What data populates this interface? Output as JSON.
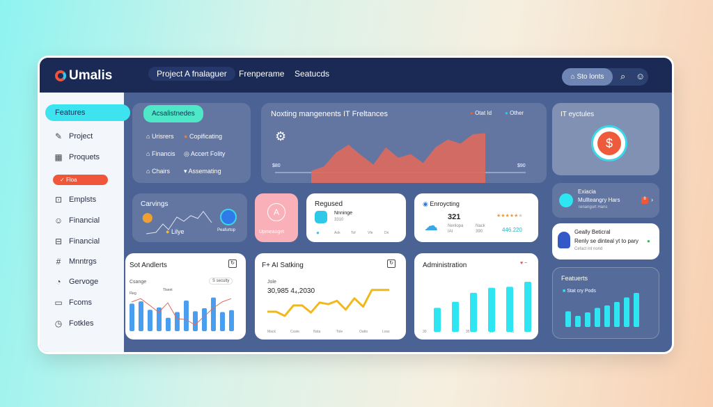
{
  "header": {
    "logo": "Umalis",
    "nav": [
      "Project A fnalaguer",
      "Frenperame",
      "Seatucds"
    ],
    "pill_label": "Sto lonts",
    "icons": [
      "search-icon",
      "user-icon"
    ]
  },
  "sidebar": {
    "active": "Features",
    "flag": "Floa",
    "items": [
      {
        "label": "Project",
        "icon": "pencil-icon",
        "glyph": "✎"
      },
      {
        "label": "Proquets",
        "icon": "calendar-icon",
        "glyph": "▦"
      },
      {
        "label": "Emplsts",
        "icon": "document-icon",
        "glyph": "⊡"
      },
      {
        "label": "Financial",
        "icon": "face-icon",
        "glyph": "☺"
      },
      {
        "label": "Financial",
        "icon": "money-icon",
        "glyph": "⊟"
      },
      {
        "label": "Mnntrgs",
        "icon": "grid-icon",
        "glyph": "#"
      },
      {
        "label": "Gervoge",
        "icon": "clock-icon",
        "glyph": "◔"
      },
      {
        "label": "Fcoms",
        "icon": "inbox-icon",
        "glyph": "▭"
      },
      {
        "label": "Fotkles",
        "icon": "compass-icon",
        "glyph": "◷"
      }
    ]
  },
  "assist": {
    "badge": "Acsalistnedes",
    "items": [
      [
        "Urisrers",
        "Copificating"
      ],
      [
        "Financis",
        "Accert Folity"
      ],
      [
        "Chairs",
        "Assemating"
      ]
    ]
  },
  "area": {
    "title": "Noxting mangenents IT Freltances",
    "legend": [
      "Otat Id",
      "Other"
    ],
    "ylabel_left": "$80",
    "ylabel_right": "$90",
    "values": [
      10,
      18,
      45,
      60,
      40,
      22,
      55,
      35,
      42,
      25,
      55,
      70,
      62,
      80,
      82
    ],
    "color": "#e06a5e"
  },
  "it": {
    "title": "IT eyctules",
    "symbol": "$"
  },
  "carvings": {
    "title": "Carvings",
    "label": "Lilye",
    "right_label": "Peafurtop"
  },
  "pink": {
    "label": "Upmeaoget",
    "symbol": "A"
  },
  "regused": {
    "title": "Regused",
    "name": "Nnninge",
    "sub": "3310",
    "axis": [
      "Aok",
      "Tof",
      "Vfe",
      "Dri"
    ]
  },
  "enroy": {
    "title": "Enroycting",
    "value": "321",
    "sub1": "Nenlopa",
    "sub1b": "IAI",
    "sub2": "Nack",
    "sub2b": "390",
    "amount": "446.220",
    "stars": "★★★★★",
    "star_off": "★"
  },
  "exacia": {
    "title": "Exiacia",
    "name": "Mullteangry Hars",
    "sub": "Tenangurt Hans",
    "badge": "8"
  },
  "geally": {
    "title": "Geally Beticral",
    "line": "Renly se dinteal yt to pary",
    "sub": "Cefact int nond"
  },
  "featuerts": {
    "title": "Featuerts",
    "legend": "Stat cry Pods",
    "values": [
      45,
      32,
      42,
      55,
      62,
      72,
      85,
      98
    ],
    "color": "#2ee6f2"
  },
  "sot": {
    "title": "Sot Andlerts",
    "label": "Csange",
    "chip": "S seculty",
    "ann1": "Fleg",
    "ann2": "Tlseet",
    "bars": [
      72,
      78,
      56,
      62,
      35,
      50,
      80,
      52,
      60,
      88,
      50,
      55
    ],
    "line": [
      70,
      78,
      62,
      45,
      68,
      30,
      28,
      15,
      35,
      55,
      70,
      78
    ],
    "bar_color": "#4a9ef0",
    "line_color": "#e06a5e"
  },
  "fai": {
    "title": "F+ AI Satking",
    "label": "Jole",
    "value": "30,985 4₄,2030",
    "axis": [
      "Mack",
      "Coste",
      "Nsta",
      "Tole",
      "Oatto",
      "Loss"
    ],
    "values": [
      40,
      40,
      30,
      55,
      55,
      38,
      62,
      58,
      66,
      45,
      72,
      52,
      92,
      92,
      92
    ],
    "color": "#f2b81a"
  },
  "admin": {
    "title": "Administration",
    "axis": [
      "30",
      "35",
      "10",
      "15"
    ],
    "values": [
      48,
      60,
      78,
      88,
      90,
      100
    ],
    "color": "#2ee6f2"
  }
}
